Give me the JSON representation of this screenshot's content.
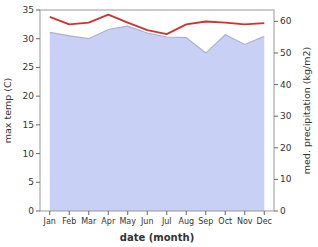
{
  "chart_data": {
    "type": "line",
    "categories": [
      "Jan",
      "Feb",
      "Mar",
      "Apr",
      "May",
      "Jun",
      "Jul",
      "Aug",
      "Sep",
      "Oct",
      "Nov",
      "Dec"
    ],
    "series": [
      {
        "type": "area",
        "color": "#c8d0f5",
        "values": [
          31.1,
          30.5,
          30.0,
          31.6,
          32.2,
          31.0,
          30.3,
          30.2,
          27.5,
          30.7,
          29.0,
          30.4
        ]
      },
      {
        "type": "line",
        "color": "#cc3333",
        "values": [
          33.8,
          32.5,
          32.8,
          34.2,
          32.8,
          31.5,
          30.8,
          32.5,
          33.0,
          32.8,
          32.5,
          32.7
        ]
      }
    ],
    "xlabel": "date (month)",
    "ylabel": "max temp (C)",
    "y2label": "med. precipitation (kg/m2)",
    "ylim": [
      0,
      35
    ],
    "yticks": [
      0,
      5,
      10,
      15,
      20,
      25,
      30,
      35
    ],
    "y2lim": [
      0,
      63.6
    ],
    "y2ticks": [
      0,
      10,
      20,
      30,
      40,
      50,
      60
    ],
    "grid": false
  }
}
